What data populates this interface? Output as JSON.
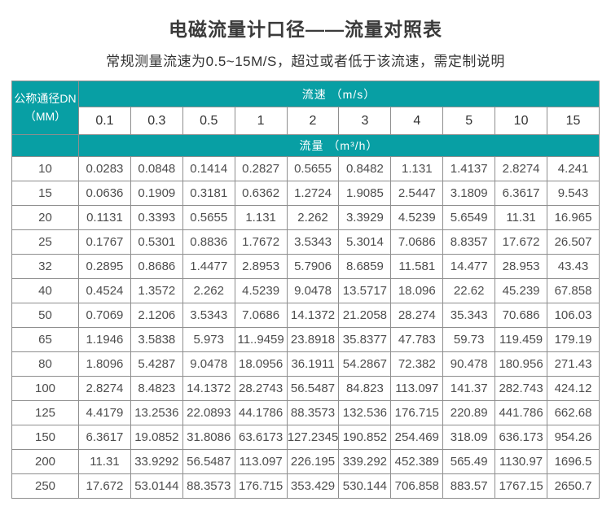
{
  "chart_data": {
    "type": "table",
    "title": "电磁流量计口径——流量对照表",
    "subtitle": "常规测量流速为0.5~15M/S，超过或者低于该流速，需定制说明",
    "corner_header": [
      "公称通径DN",
      "（MM）"
    ],
    "speed_header": "流速 （m/s）",
    "flow_header": "流量 （m³/h）",
    "speed_values": [
      "0.1",
      "0.3",
      "0.5",
      "1",
      "2",
      "3",
      "4",
      "5",
      "10",
      "15"
    ],
    "rows": [
      {
        "dn": "10",
        "values": [
          "0.0283",
          "0.0848",
          "0.1414",
          "0.2827",
          "0.5655",
          "0.8482",
          "1.131",
          "1.4137",
          "2.8274",
          "4.241"
        ]
      },
      {
        "dn": "15",
        "values": [
          "0.0636",
          "0.1909",
          "0.3181",
          "0.6362",
          "1.2724",
          "1.9085",
          "2.5447",
          "3.1809",
          "6.3617",
          "9.543"
        ]
      },
      {
        "dn": "20",
        "values": [
          "0.1131",
          "0.3393",
          "0.5655",
          "1.131",
          "2.262",
          "3.3929",
          "4.5239",
          "5.6549",
          "11.31",
          "16.965"
        ]
      },
      {
        "dn": "25",
        "values": [
          "0.1767",
          "0.5301",
          "0.8836",
          "1.7672",
          "3.5343",
          "5.3014",
          "7.0686",
          "8.8357",
          "17.672",
          "26.507"
        ]
      },
      {
        "dn": "32",
        "values": [
          "0.2895",
          "0.8686",
          "1.4477",
          "2.8953",
          "5.7906",
          "8.6859",
          "11.581",
          "14.477",
          "28.953",
          "43.43"
        ]
      },
      {
        "dn": "40",
        "values": [
          "0.4524",
          "1.3572",
          "2.262",
          "4.5239",
          "9.0478",
          "13.5717",
          "18.096",
          "22.62",
          "45.239",
          "67.858"
        ]
      },
      {
        "dn": "50",
        "values": [
          "0.7069",
          "2.1206",
          "3.5343",
          "7.0686",
          "14.1372",
          "21.2058",
          "28.274",
          "35.343",
          "70.686",
          "106.03"
        ]
      },
      {
        "dn": "65",
        "values": [
          "1.1946",
          "3.5838",
          "5.973",
          "11..9459",
          "23.8918",
          "35.8377",
          "47.783",
          "59.73",
          "119.459",
          "179.19"
        ]
      },
      {
        "dn": "80",
        "values": [
          "1.8096",
          "5.4287",
          "9.0478",
          "18.0956",
          "36.1911",
          "54.2867",
          "72.382",
          "90.478",
          "180.956",
          "271.43"
        ]
      },
      {
        "dn": "100",
        "values": [
          "2.8274",
          "8.4823",
          "14.1372",
          "28.2743",
          "56.5487",
          "84.823",
          "113.097",
          "141.37",
          "282.743",
          "424.12"
        ]
      },
      {
        "dn": "125",
        "values": [
          "4.4179",
          "13.2536",
          "22.0893",
          "44.1786",
          "88.3573",
          "132.536",
          "176.715",
          "220.89",
          "441.786",
          "662.68"
        ]
      },
      {
        "dn": "150",
        "values": [
          "6.3617",
          "19.0852",
          "31.8086",
          "63.6173",
          "127.2345",
          "190.852",
          "254.469",
          "318.09",
          "636.173",
          "954.26"
        ]
      },
      {
        "dn": "200",
        "values": [
          "11.31",
          "33.9292",
          "56.5487",
          "113.097",
          "226.195",
          "339.292",
          "452.389",
          "565.49",
          "1130.97",
          "1696.5"
        ]
      },
      {
        "dn": "250",
        "values": [
          "17.672",
          "53.0144",
          "88.3573",
          "176.715",
          "353.429",
          "530.144",
          "706.858",
          "883.57",
          "1767.15",
          "2650.7"
        ]
      }
    ]
  },
  "colors": {
    "accent_teal": "#089fa4",
    "border_gray": "#8e8e8e",
    "title_text": "#3a3a3a",
    "cell_text": "#4d4d4d",
    "band_text": "#ffffff"
  }
}
